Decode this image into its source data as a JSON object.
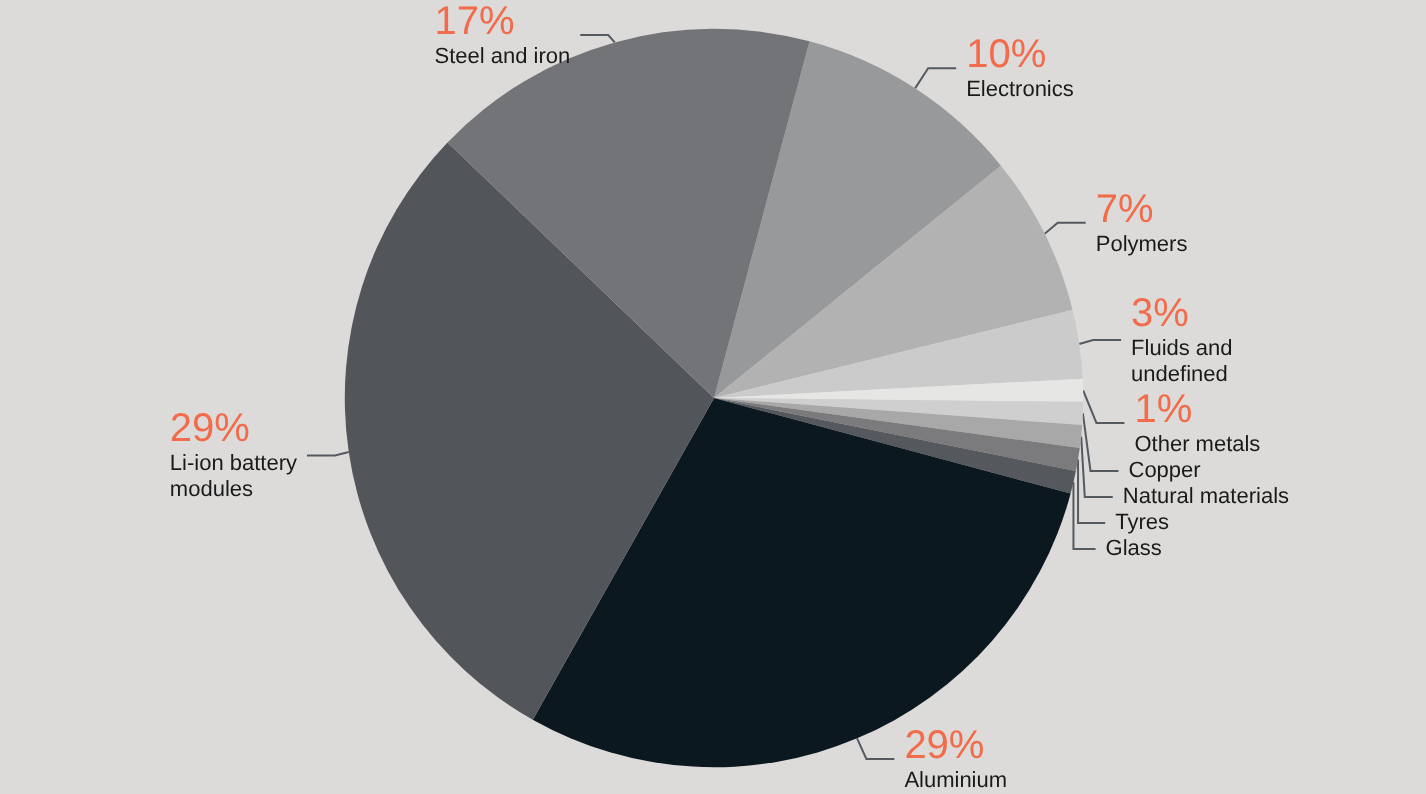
{
  "chart_data": {
    "type": "pie",
    "categories": [
      "Electronics",
      "Polymers",
      "Fluids and\nundefined",
      "Other metals",
      "Copper",
      "Natural materials",
      "Tyres",
      "Glass",
      "Aluminium",
      "Li-ion battery\nmodules",
      "Steel and iron"
    ],
    "values": [
      10,
      7,
      3,
      1,
      1,
      1,
      1,
      1,
      29,
      29,
      17
    ],
    "value_labels": [
      "10%",
      "7%",
      "3%",
      "1%",
      null,
      null,
      null,
      null,
      "29%",
      "29%",
      "17%"
    ],
    "colors": [
      "#98999b",
      "#b2b2b3",
      "#cbcbcb",
      "#e6e6e4",
      "#cfcfcf",
      "#a8a8a8",
      "#7b7b7d",
      "#55585c",
      "#0c1820",
      "#52555a",
      "#737478"
    ]
  }
}
